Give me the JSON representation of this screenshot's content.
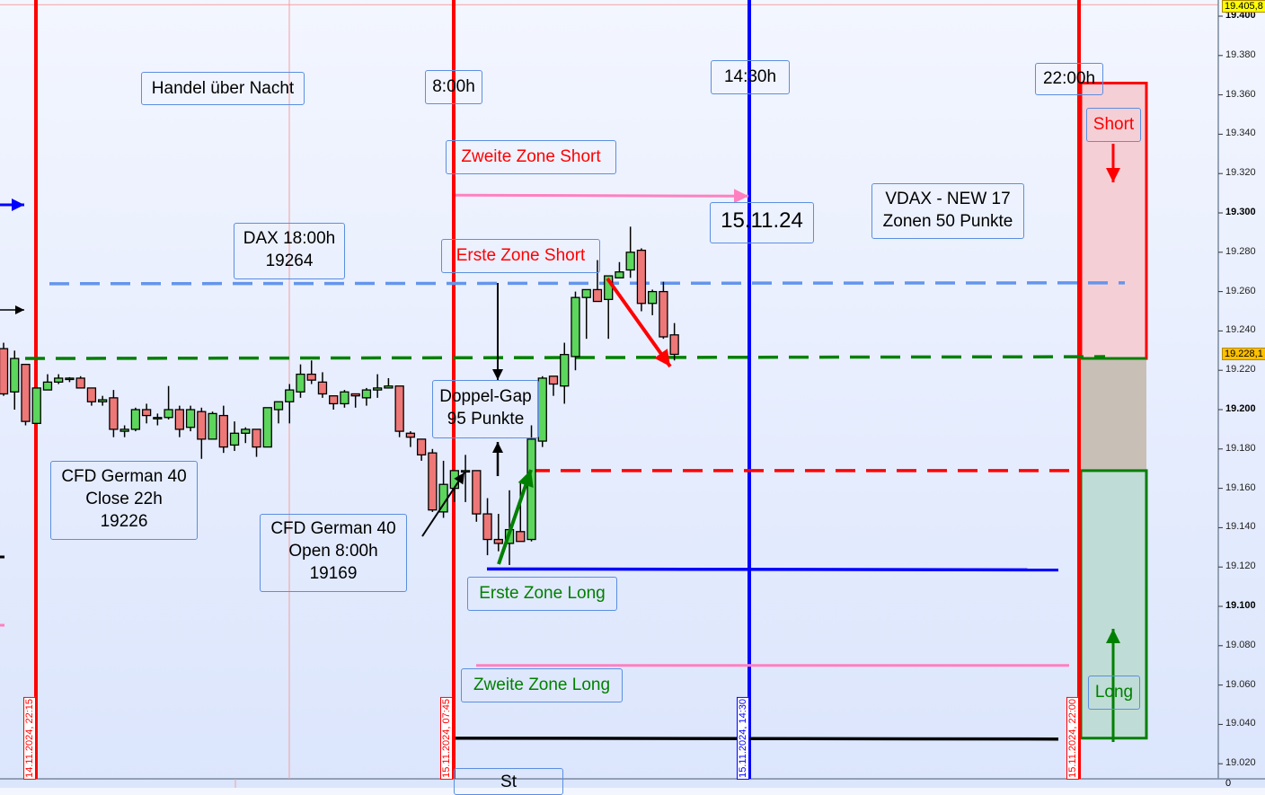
{
  "chart_data": {
    "type": "candlestick",
    "ylim": [
      19015,
      19408
    ],
    "y_ticks": [
      {
        "v": 19400,
        "label": "19.400",
        "bold": true
      },
      {
        "v": 19380,
        "label": "19.380"
      },
      {
        "v": 19360,
        "label": "19.360"
      },
      {
        "v": 19340,
        "label": "19.340"
      },
      {
        "v": 19320,
        "label": "19.320"
      },
      {
        "v": 19300,
        "label": "19.300",
        "bold": true
      },
      {
        "v": 19280,
        "label": "19.280"
      },
      {
        "v": 19260,
        "label": "19.260"
      },
      {
        "v": 19240,
        "label": "19.240"
      },
      {
        "v": 19220,
        "label": "19.220"
      },
      {
        "v": 19200,
        "label": "19.200",
        "bold": true
      },
      {
        "v": 19180,
        "label": "19.180"
      },
      {
        "v": 19160,
        "label": "19.160"
      },
      {
        "v": 19140,
        "label": "19.140"
      },
      {
        "v": 19120,
        "label": "19.120"
      },
      {
        "v": 19100,
        "label": "19.100",
        "bold": true
      },
      {
        "v": 19080,
        "label": "19.080"
      },
      {
        "v": 19060,
        "label": "19.060"
      },
      {
        "v": 19040,
        "label": "19.040"
      },
      {
        "v": 19020,
        "label": "19.020"
      }
    ],
    "price_tags": {
      "high": "19.405,8",
      "last": "19.228,1"
    },
    "high_value": 19405.8,
    "last_value": 19228.1,
    "lower_pane_label": "0",
    "candles": [
      [
        19231,
        19234,
        19207,
        19208
      ],
      [
        19209,
        19230,
        19200,
        19226
      ],
      [
        19223,
        19223,
        19192,
        19194
      ],
      [
        19193,
        19211,
        19193,
        19211
      ],
      [
        19210,
        19218,
        19210,
        19214
      ],
      [
        19214,
        19218,
        19213,
        19216
      ],
      [
        19216,
        19216.5,
        19214,
        19216
      ],
      [
        19216,
        19217,
        19211,
        19211
      ],
      [
        19211,
        19211,
        19202,
        19204
      ],
      [
        19204,
        19207,
        19202,
        19205
      ],
      [
        19206,
        19210,
        19186,
        19190
      ],
      [
        19189,
        19192,
        19186,
        19190
      ],
      [
        19190,
        19201,
        19189,
        19200
      ],
      [
        19200,
        19203,
        19193,
        19197
      ],
      [
        19196,
        19198,
        19192,
        19196
      ],
      [
        19196,
        19212,
        19195,
        19200
      ],
      [
        19200,
        19202,
        19186,
        19190
      ],
      [
        19191,
        19202,
        19189,
        19200
      ],
      [
        19199,
        19201,
        19175,
        19185
      ],
      [
        19185,
        19199,
        19185,
        19198
      ],
      [
        19197,
        19202,
        19178,
        19181
      ],
      [
        19182,
        19194,
        19179,
        19188
      ],
      [
        19188,
        19191,
        19183,
        19190
      ],
      [
        19190,
        19190,
        19176,
        19181
      ],
      [
        19181,
        19201,
        19181,
        19201
      ],
      [
        19200,
        19204,
        19193,
        19204
      ],
      [
        19204,
        19213,
        19193,
        19210
      ],
      [
        19209,
        19223,
        19206,
        19218
      ],
      [
        19218,
        19225,
        19213,
        19215
      ],
      [
        19214,
        19219,
        19206,
        19208
      ],
      [
        19207,
        19207,
        19200,
        19203
      ],
      [
        19203,
        19210,
        19201,
        19209
      ],
      [
        19208,
        19208,
        19201,
        19207
      ],
      [
        19206,
        19211,
        19202,
        19210
      ],
      [
        19210,
        19218,
        19206,
        19211
      ],
      [
        19211,
        19216,
        19211,
        19212
      ],
      [
        19212,
        19212,
        19186,
        19189
      ],
      [
        19188,
        19189,
        19181,
        19186
      ],
      [
        19185,
        19185,
        19174,
        19177
      ],
      [
        19178,
        19180,
        19148,
        19149
      ],
      [
        19148,
        19174,
        19145,
        19162
      ],
      [
        19160,
        19169,
        19153,
        19169
      ],
      [
        19169,
        19177,
        19153,
        19169
      ],
      [
        19169,
        19169,
        19143,
        19147
      ],
      [
        19147,
        19155,
        19126,
        19134
      ],
      [
        19134,
        19147,
        19128,
        19132
      ],
      [
        19132,
        19159,
        19121,
        19139
      ],
      [
        19138,
        19163,
        19133,
        19133
      ],
      [
        19134,
        19192,
        19133,
        19185
      ],
      [
        19184,
        19217,
        19181,
        19216
      ],
      [
        19217,
        19217,
        19207,
        19213
      ],
      [
        19212,
        19234,
        19203,
        19228
      ],
      [
        19227,
        19260,
        19220,
        19257
      ],
      [
        19257,
        19261,
        19236,
        19261
      ],
      [
        19261,
        19276,
        19255,
        19255
      ],
      [
        19256,
        19268,
        19236,
        19268
      ],
      [
        19267,
        19275,
        19267,
        19270
      ],
      [
        19271,
        19293,
        19267,
        19280
      ],
      [
        19281,
        19282,
        19250,
        19254
      ],
      [
        19254,
        19261,
        19248,
        19260
      ],
      [
        19260,
        19265,
        19236,
        19237
      ],
      [
        19238,
        19244,
        19225,
        19228.1
      ]
    ],
    "levels": [
      {
        "name": "dax-18h-level",
        "value": 19264,
        "color": "#6495ed",
        "style": "dashed"
      },
      {
        "name": "close-22h-level",
        "value": 19226,
        "color": "#008000",
        "style": "dashed"
      },
      {
        "name": "open-8h-level",
        "value": 19169,
        "color": "#ff0000",
        "style": "dashed"
      },
      {
        "name": "erste-zone-long-level",
        "value": 19119,
        "color": "#0000ff",
        "style": "solid"
      },
      {
        "name": "zweite-zone-long-level",
        "value": 19070,
        "color": "#ff80c0",
        "style": "solid"
      },
      {
        "name": "support-level",
        "value": 19033,
        "color": "#000000",
        "style": "solid"
      },
      {
        "name": "zweite-zone-short-level",
        "value": 19309,
        "color": "#ff80c0",
        "style": "arrow"
      }
    ],
    "zones": {
      "short": [
        19226,
        19366
      ],
      "neutral": [
        19169,
        19226
      ],
      "long": [
        19033,
        19169
      ]
    },
    "colors": {
      "bull": "#5cd65c",
      "bear": "#ee7777",
      "session": "#ff0000",
      "midday": "#0000ff"
    },
    "time_markers": [
      "14.11.2024, 22:15",
      "15.11.2024, 07:45",
      "15.11.2024, 14:30",
      "15.11.2024, 22:00"
    ]
  },
  "annotations": {
    "handel": "Handel über Nacht",
    "t800": "8:00h",
    "t1430": "14:30h",
    "t2200": "22:00h",
    "zweite_short": "Zweite Zone Short",
    "date": "15.11.24",
    "vdax_1": "VDAX - NEW 17",
    "vdax_2": "Zonen 50 Punkte",
    "dax_1": "DAX 18:00h",
    "dax_2": "19264",
    "erste_short": "Erste Zone Short",
    "gap_1": "Doppel-Gap",
    "gap_2": "95 Punkte",
    "close_1": "CFD German 40",
    "close_2": "Close 22h",
    "close_3": "19226",
    "open_1": "CFD German 40",
    "open_2": "Open 8:00h",
    "open_3": "19169",
    "erste_long": "Erste Zone Long",
    "zweite_long": "Zweite Zone Long",
    "short": "Short",
    "long": "Long",
    "cut_box": "St"
  }
}
